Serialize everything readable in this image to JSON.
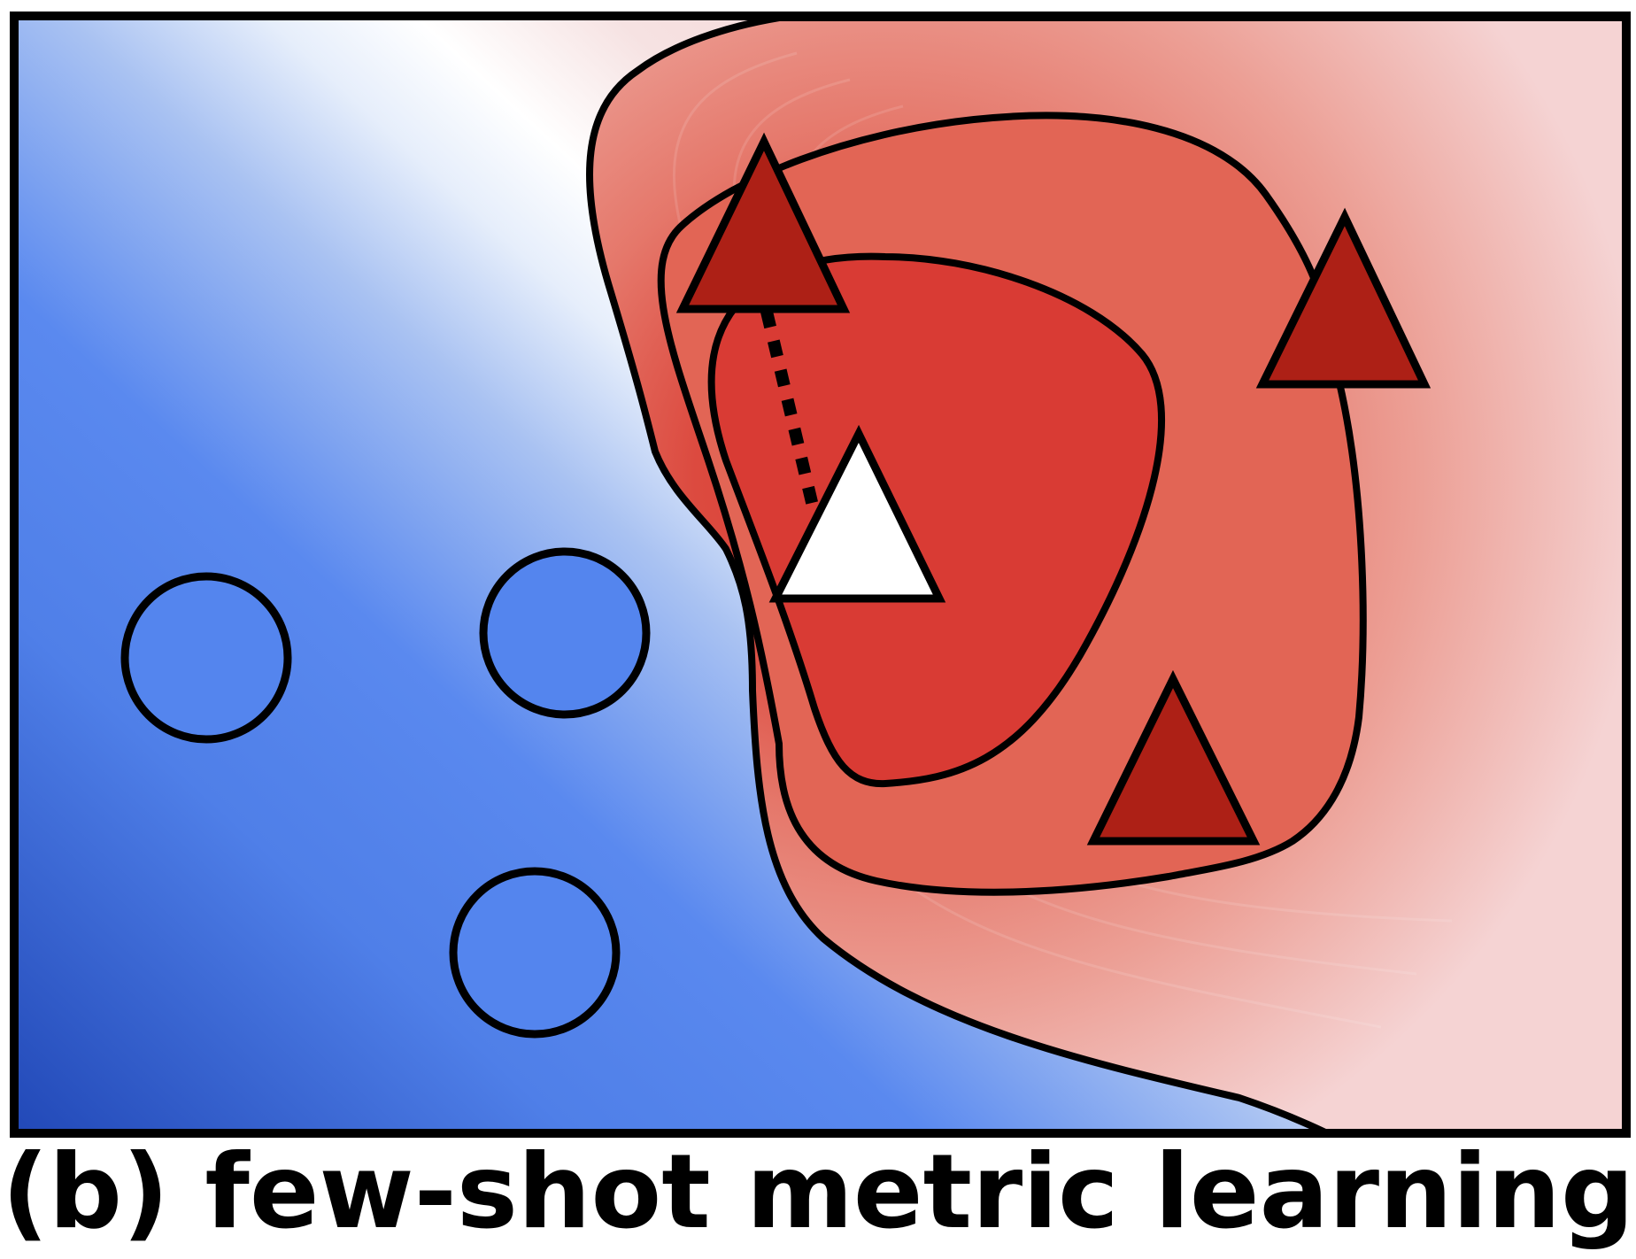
{
  "caption": "(b) few-shot metric learning",
  "colors": {
    "blue_dark": "#2249b8",
    "blue_mid": "#5485ee",
    "blue_light": "#a9c2f2",
    "white": "#ffffff",
    "red_core": "#d93b34",
    "red_mid": "#e5776a",
    "red_pale": "#f2c6c6",
    "support_triangle_fill": "#ad2016",
    "query_triangle_fill": "#ffffff",
    "circle_fill": "#5485ee",
    "stroke": "#000000"
  },
  "elements": {
    "query": {
      "shape": "triangle",
      "fill": "white",
      "class": "query"
    },
    "support_triangles": [
      {
        "shape": "triangle",
        "class": "positive-support"
      },
      {
        "shape": "triangle",
        "class": "positive-support"
      },
      {
        "shape": "triangle",
        "class": "positive-support"
      }
    ],
    "support_circles": [
      {
        "shape": "circle",
        "class": "negative-support"
      },
      {
        "shape": "circle",
        "class": "negative-support"
      },
      {
        "shape": "circle",
        "class": "negative-support"
      }
    ],
    "distance_line": {
      "style": "dotted",
      "from": "query",
      "to": "support-triangle-1"
    }
  }
}
